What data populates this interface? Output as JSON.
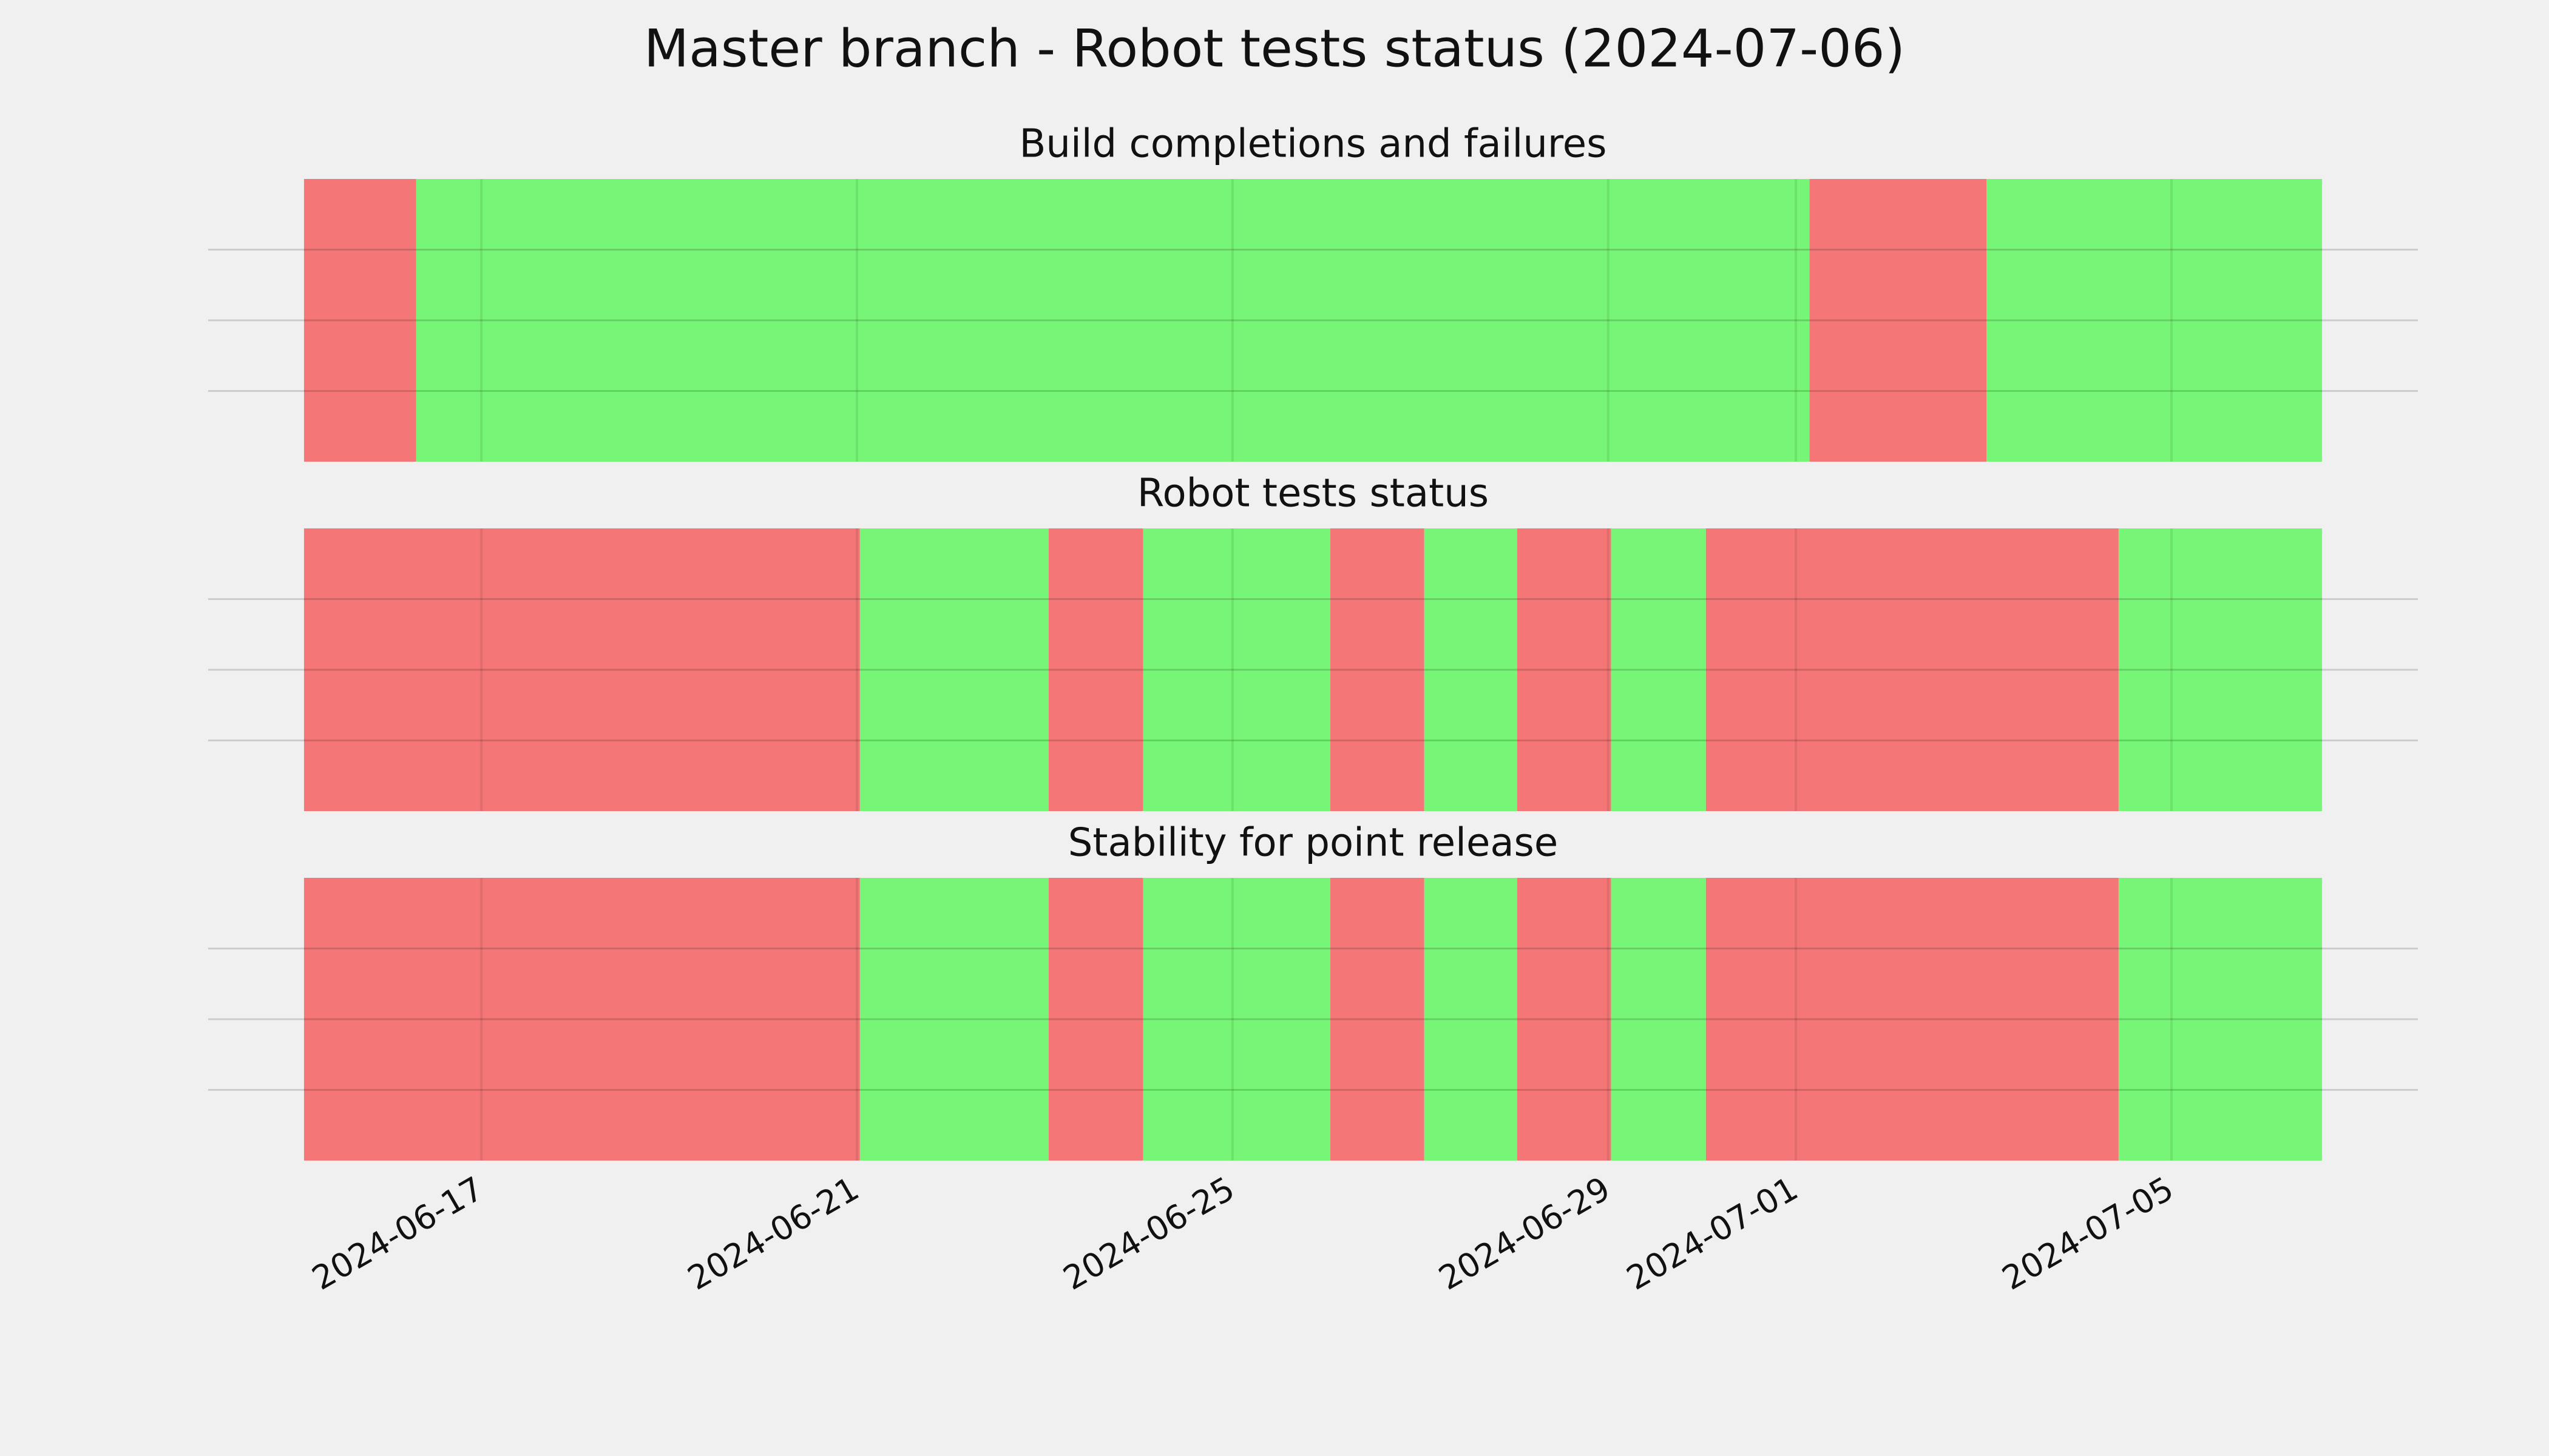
{
  "chart_data": {
    "type": "timeline",
    "title": "Master branch - Robot tests status (2024-07-06)",
    "xlim": [
      "2024-06-14 02:10",
      "2024-07-07 15:00"
    ],
    "xticks": [
      "2024-06-17",
      "2024-06-21",
      "2024-06-25",
      "2024-06-29",
      "2024-07-01",
      "2024-07-05"
    ],
    "grid": true,
    "panels": [
      {
        "title": "Build completions and failures",
        "spans": [
          {
            "start": "2024-06-15 02:40",
            "end": "2024-06-16 07:20",
            "color": "#f47676"
          },
          {
            "start": "2024-06-16 07:20",
            "end": "2024-07-01 03:30",
            "color": "#76f576"
          },
          {
            "start": "2024-07-01 03:30",
            "end": "2024-07-03 00:45",
            "color": "#f47676"
          },
          {
            "start": "2024-07-03 00:45",
            "end": "2024-07-06 14:30",
            "color": "#76f576"
          }
        ]
      },
      {
        "title": "Robot tests status",
        "spans": [
          {
            "start": "2024-06-15 02:40",
            "end": "2024-06-21 00:45",
            "color": "#f47676"
          },
          {
            "start": "2024-06-21 00:45",
            "end": "2024-06-23 01:00",
            "color": "#76f576"
          },
          {
            "start": "2024-06-23 01:00",
            "end": "2024-06-24 01:10",
            "color": "#f47676"
          },
          {
            "start": "2024-06-24 01:10",
            "end": "2024-06-26 01:00",
            "color": "#76f576"
          },
          {
            "start": "2024-06-26 01:00",
            "end": "2024-06-27 01:00",
            "color": "#f47676"
          },
          {
            "start": "2024-06-27 01:00",
            "end": "2024-06-28 00:45",
            "color": "#76f576"
          },
          {
            "start": "2024-06-28 00:45",
            "end": "2024-06-29 00:45",
            "color": "#f47676"
          },
          {
            "start": "2024-06-29 00:45",
            "end": "2024-06-30 01:00",
            "color": "#76f576"
          },
          {
            "start": "2024-06-30 01:00",
            "end": "2024-07-04 10:30",
            "color": "#f47676"
          },
          {
            "start": "2024-07-04 10:30",
            "end": "2024-07-06 14:30",
            "color": "#76f576"
          }
        ]
      },
      {
        "title": "Stability for point release",
        "spans": [
          {
            "start": "2024-06-15 02:40",
            "end": "2024-06-21 00:45",
            "color": "#f47676"
          },
          {
            "start": "2024-06-21 00:45",
            "end": "2024-06-23 01:00",
            "color": "#76f576"
          },
          {
            "start": "2024-06-23 01:00",
            "end": "2024-06-24 01:10",
            "color": "#f47676"
          },
          {
            "start": "2024-06-24 01:10",
            "end": "2024-06-26 01:00",
            "color": "#76f576"
          },
          {
            "start": "2024-06-26 01:00",
            "end": "2024-06-27 01:00",
            "color": "#f47676"
          },
          {
            "start": "2024-06-27 01:00",
            "end": "2024-06-28 00:45",
            "color": "#76f576"
          },
          {
            "start": "2024-06-28 00:45",
            "end": "2024-06-29 00:45",
            "color": "#f47676"
          },
          {
            "start": "2024-06-29 00:45",
            "end": "2024-06-30 01:00",
            "color": "#76f576"
          },
          {
            "start": "2024-06-30 01:00",
            "end": "2024-07-04 10:30",
            "color": "#f47676"
          },
          {
            "start": "2024-07-04 10:30",
            "end": "2024-07-06 14:30",
            "color": "#76f576"
          }
        ]
      }
    ]
  }
}
